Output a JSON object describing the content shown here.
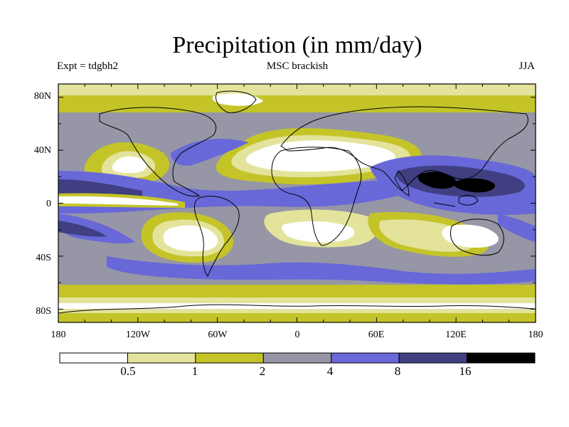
{
  "title": "Precipitation (in mm/day)",
  "header": {
    "experiment": "Expt = tdgbh2",
    "label": "MSC brackish",
    "season": "JJA"
  },
  "map": {
    "projection": "cylindrical equidistant",
    "lat_tick_labels": [
      "80N",
      "40N",
      "0",
      "40S",
      "80S"
    ],
    "lon_tick_labels": [
      "180",
      "120W",
      "60W",
      "0",
      "60E",
      "120E",
      "180"
    ],
    "coastlines": true
  },
  "colorbar": {
    "colors": [
      "#ffffff",
      "#e3e39b",
      "#c4c429",
      "#9696a6",
      "#6868d8",
      "#3f3f82",
      "#000000"
    ],
    "tick_labels": [
      "0.5",
      "1",
      "2",
      "4",
      "8",
      "16"
    ]
  }
}
